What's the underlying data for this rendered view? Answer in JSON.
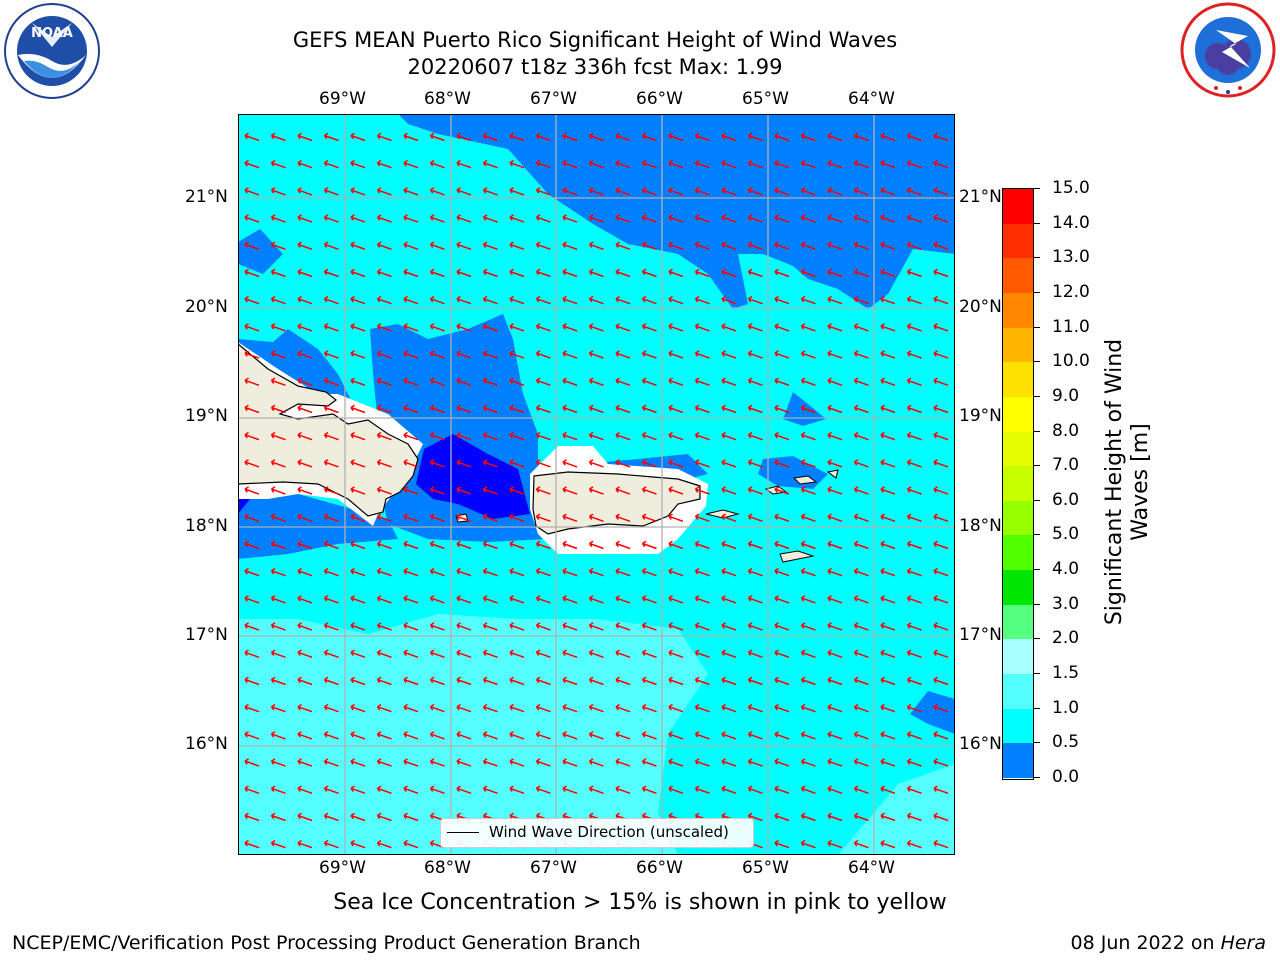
{
  "header": {
    "title_line1": "GEFS MEAN Puerto Rico Significant Height of Wind Waves",
    "title_line2": "20220607 t18z 336h fcst   Max: 1.99"
  },
  "logos": {
    "left": {
      "name": "noaa-logo",
      "text": "NOAA",
      "ring_text": "NATIONAL OCEANIC AND ATMOSPHERIC ADMINISTRATION · U.S. DEPARTMENT OF COMMERCE"
    },
    "right": {
      "name": "nws-logo",
      "ring_text": "NATIONAL WEATHER SERVICE"
    }
  },
  "map": {
    "lon_labels": [
      "69°W",
      "68°W",
      "67°W",
      "66°W",
      "65°W",
      "64°W"
    ],
    "lat_labels": [
      "21°N",
      "20°N",
      "19°N",
      "18°N",
      "17°N",
      "16°N"
    ],
    "legend_label": "Wind Wave Direction (unscaled)",
    "colors": {
      "cyan": "#00ffff",
      "light_cyan": "#55ffff",
      "blue": "#0080ff",
      "dark_blue": "#0000ff",
      "land": "#efedde",
      "arrow": "#ff0000"
    }
  },
  "colorbar": {
    "label": "Significant Height of Wind Waves [m]",
    "label_line1": "Significant Height of Wind",
    "label_line2": "Waves [m]",
    "ticks": [
      "15.0",
      "14.0",
      "13.0",
      "12.0",
      "11.0",
      "10.0",
      "9.0",
      "8.0",
      "7.0",
      "6.0",
      "5.0",
      "4.0",
      "3.0",
      "2.0",
      "1.5",
      "1.0",
      "0.5",
      "0.0"
    ],
    "colors": [
      "#ff0000",
      "#ff2d00",
      "#ff5a00",
      "#ff8700",
      "#ffb400",
      "#ffe100",
      "#ffff00",
      "#e6ff00",
      "#c8ff00",
      "#96ff00",
      "#50ff00",
      "#00e600",
      "#55ff80",
      "#aaffff",
      "#55ffff",
      "#00ffff",
      "#0080ff",
      "#0000ff"
    ]
  },
  "notes": {
    "sea_ice": "Sea Ice Concentration > 15% is shown in pink to yellow"
  },
  "footer": {
    "left": "NCEP/EMC/Verification Post Processing Product Generation Branch",
    "date": "08 Jun 2022 on ",
    "host": "Hera"
  }
}
